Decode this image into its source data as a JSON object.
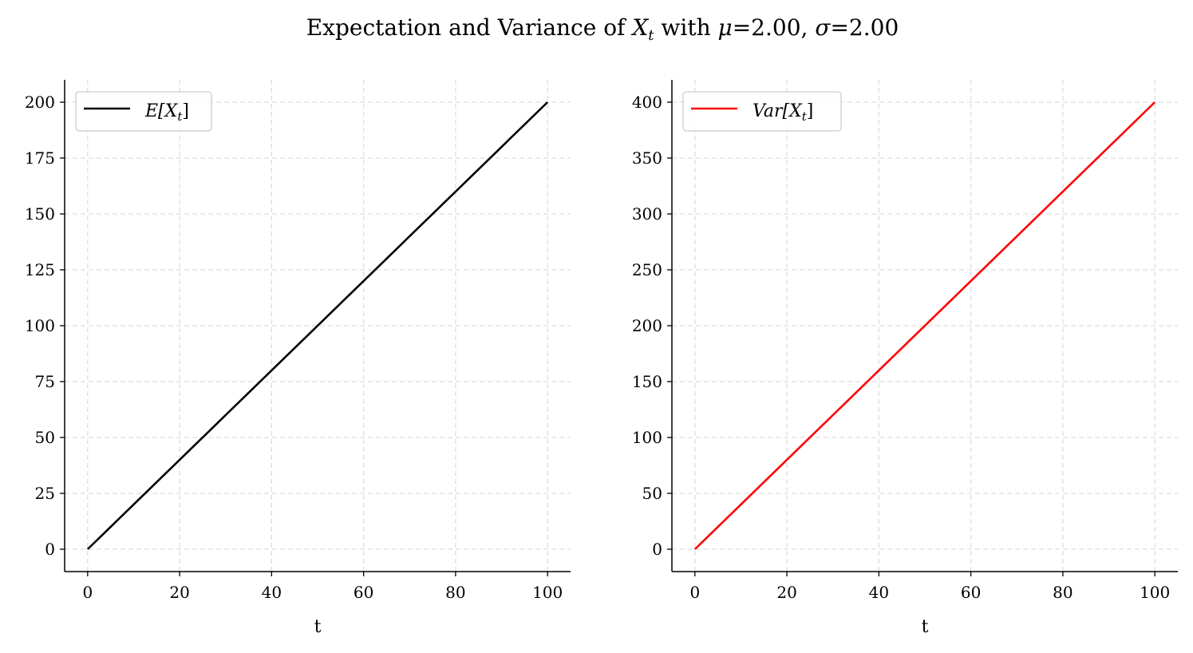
{
  "figure": {
    "title_prefix": "Expectation and Variance of ",
    "title_var": "X",
    "title_var_sub": "t",
    "title_with": " with ",
    "title_mu_sym": "μ",
    "title_mu_val": "=2.00, ",
    "title_sigma_sym": "σ",
    "title_sigma_val": "=2.00"
  },
  "chart_data": [
    {
      "type": "line",
      "xlabel": "t",
      "ylabel": "",
      "xlim": [
        -5,
        105
      ],
      "ylim": [
        -10,
        210
      ],
      "xticks": [
        0,
        20,
        40,
        60,
        80,
        100
      ],
      "yticks": [
        0,
        25,
        50,
        75,
        100,
        125,
        150,
        175,
        200
      ],
      "grid": true,
      "legend_position": "top-left",
      "legend_label": "E[X",
      "legend_label_sub": "t",
      "legend_label_close": "]",
      "series": [
        {
          "name": "E[X_t]",
          "color": "#000000",
          "x": [
            0,
            100
          ],
          "y": [
            0,
            200
          ]
        }
      ]
    },
    {
      "type": "line",
      "xlabel": "t",
      "ylabel": "",
      "xlim": [
        -5,
        105
      ],
      "ylim": [
        -20,
        420
      ],
      "xticks": [
        0,
        20,
        40,
        60,
        80,
        100
      ],
      "yticks": [
        0,
        50,
        100,
        150,
        200,
        250,
        300,
        350,
        400
      ],
      "grid": true,
      "legend_position": "top-left",
      "legend_label": "Var[X",
      "legend_label_sub": "t",
      "legend_label_close": "]",
      "series": [
        {
          "name": "Var[X_t]",
          "color": "#ff0000",
          "x": [
            0,
            100
          ],
          "y": [
            0,
            400
          ]
        }
      ]
    }
  ]
}
